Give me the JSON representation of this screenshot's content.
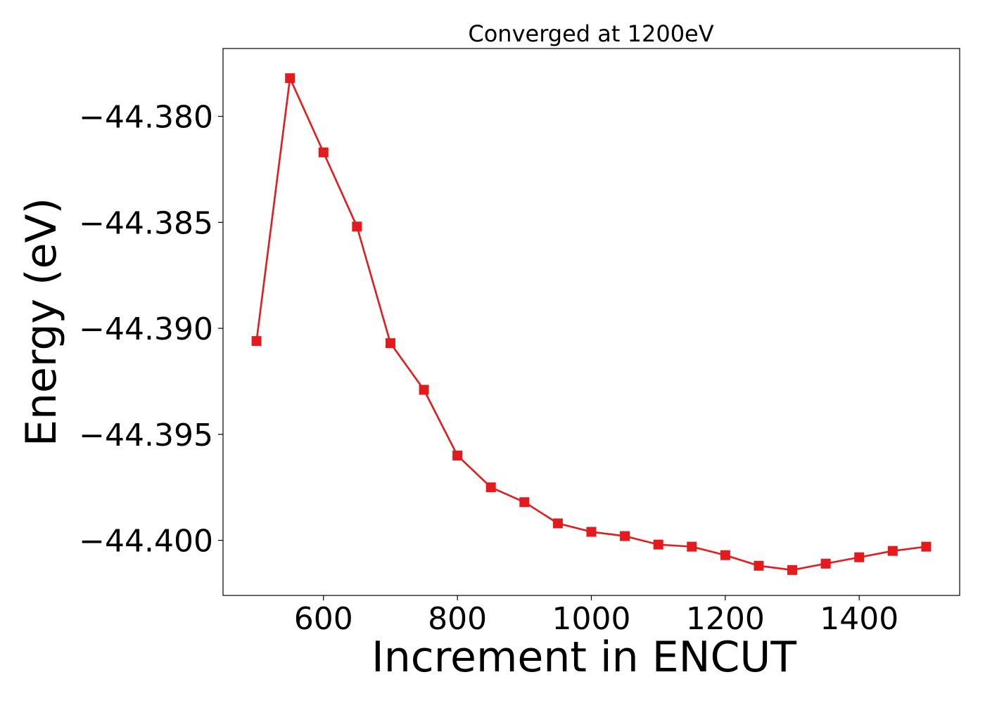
{
  "chart_data": {
    "type": "line",
    "title": "Converged at 1200eV",
    "xlabel": "Increment in ENCUT",
    "ylabel": "Energy (eV)",
    "xlim": [
      450,
      1550
    ],
    "ylim": [
      -44.4026,
      -44.3768
    ],
    "x_ticks": [
      600,
      800,
      1000,
      1200,
      1400
    ],
    "x_tick_labels": [
      "600",
      "800",
      "1000",
      "1200",
      "1400"
    ],
    "y_ticks": [
      -44.38,
      -44.385,
      -44.39,
      -44.395,
      -44.4
    ],
    "y_tick_labels": [
      "−44.380",
      "−44.385",
      "−44.390",
      "−44.395",
      "−44.400"
    ],
    "grid": false,
    "series": [
      {
        "color": "#e41a1c",
        "marker": "square",
        "x": [
          500,
          550,
          600,
          650,
          700,
          750,
          800,
          850,
          900,
          950,
          1000,
          1050,
          1100,
          1150,
          1200,
          1250,
          1300,
          1350,
          1400,
          1450,
          1500
        ],
        "y": [
          -44.3906,
          -44.3782,
          -44.3817,
          -44.3852,
          -44.3907,
          -44.3929,
          -44.396,
          -44.3975,
          -44.3982,
          -44.3992,
          -44.3996,
          -44.3998,
          -44.4002,
          -44.4003,
          -44.4007,
          -44.4012,
          -44.4014,
          -44.4011,
          -44.4008,
          -44.4005,
          -44.4003
        ]
      }
    ]
  }
}
